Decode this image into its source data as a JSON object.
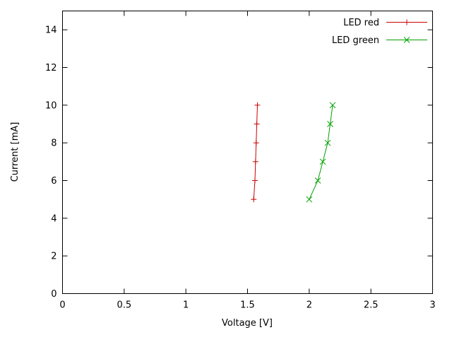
{
  "chart_data": {
    "type": "line",
    "title": "",
    "xlabel": "Voltage [V]",
    "ylabel": "Current [mA]",
    "xlim": [
      0,
      3
    ],
    "ylim": [
      0,
      15
    ],
    "xticks": [
      0,
      0.5,
      1,
      1.5,
      2,
      2.5,
      3
    ],
    "xtick_labels": [
      "0",
      "0.5",
      "1",
      "1.5",
      "2",
      "2.5",
      "3"
    ],
    "yticks": [
      0,
      2,
      4,
      6,
      8,
      10,
      12,
      14
    ],
    "ytick_labels": [
      "0",
      "2",
      "4",
      "6",
      "8",
      "10",
      "12",
      "14"
    ],
    "grid": false,
    "legend_position": "top-right-inside",
    "background_color": "#ffffff",
    "axis_color": "#000000",
    "series": [
      {
        "name": "LED red",
        "color": "#cc0000",
        "marker": "plus",
        "points": [
          [
            1.55,
            5
          ],
          [
            1.56,
            6
          ],
          [
            1.565,
            7
          ],
          [
            1.57,
            8
          ],
          [
            1.575,
            9
          ],
          [
            1.58,
            10
          ]
        ]
      },
      {
        "name": "LED green",
        "color": "#00a000",
        "marker": "cross",
        "points": [
          [
            2.0,
            5
          ],
          [
            2.07,
            6
          ],
          [
            2.11,
            7
          ],
          [
            2.15,
            8
          ],
          [
            2.17,
            9
          ],
          [
            2.19,
            10
          ]
        ]
      }
    ]
  }
}
